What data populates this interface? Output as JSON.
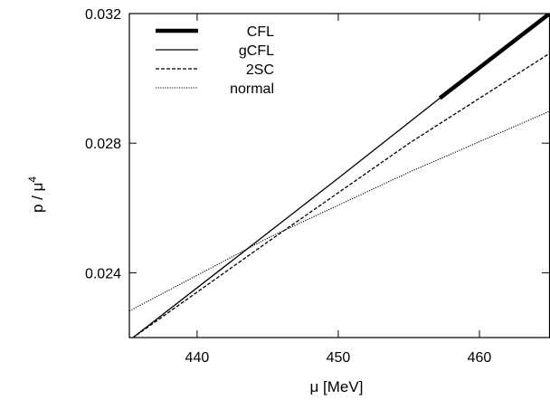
{
  "chart_data": {
    "type": "line",
    "title": "",
    "xlabel": "μ [MeV]",
    "ylabel_main": "p / μ",
    "ylabel_sup": "4",
    "xlim": [
      435.2,
      465
    ],
    "ylim": [
      0.022,
      0.032
    ],
    "x_ticks": [
      440,
      450,
      460
    ],
    "x_tick_labels": [
      "440",
      "450",
      "460"
    ],
    "y_ticks": [
      0.024,
      0.028,
      0.032
    ],
    "y_tick_labels": [
      "0.024",
      "0.028",
      "0.032"
    ],
    "grid": false,
    "legend_position": "top-left",
    "series": [
      {
        "name": "CFL",
        "style": "thick-solid",
        "x": [
          457.2,
          465.0
        ],
        "y": [
          0.02939,
          0.03201
        ]
      },
      {
        "name": "gCFL",
        "style": "solid",
        "x": [
          435.4,
          443.0,
          450.0,
          457.2
        ],
        "y": [
          0.02198,
          0.02455,
          0.02692,
          0.02939
        ]
      },
      {
        "name": "2SC",
        "style": "dashed",
        "x": [
          435.4,
          445.0,
          455.0,
          465.0
        ],
        "y": [
          0.02198,
          0.02495,
          0.02799,
          0.03078
        ]
      },
      {
        "name": "normal",
        "style": "dotted",
        "x": [
          435.2,
          445.0,
          455.0,
          465.0
        ],
        "y": [
          0.02282,
          0.02507,
          0.0271,
          0.02899
        ]
      }
    ]
  }
}
